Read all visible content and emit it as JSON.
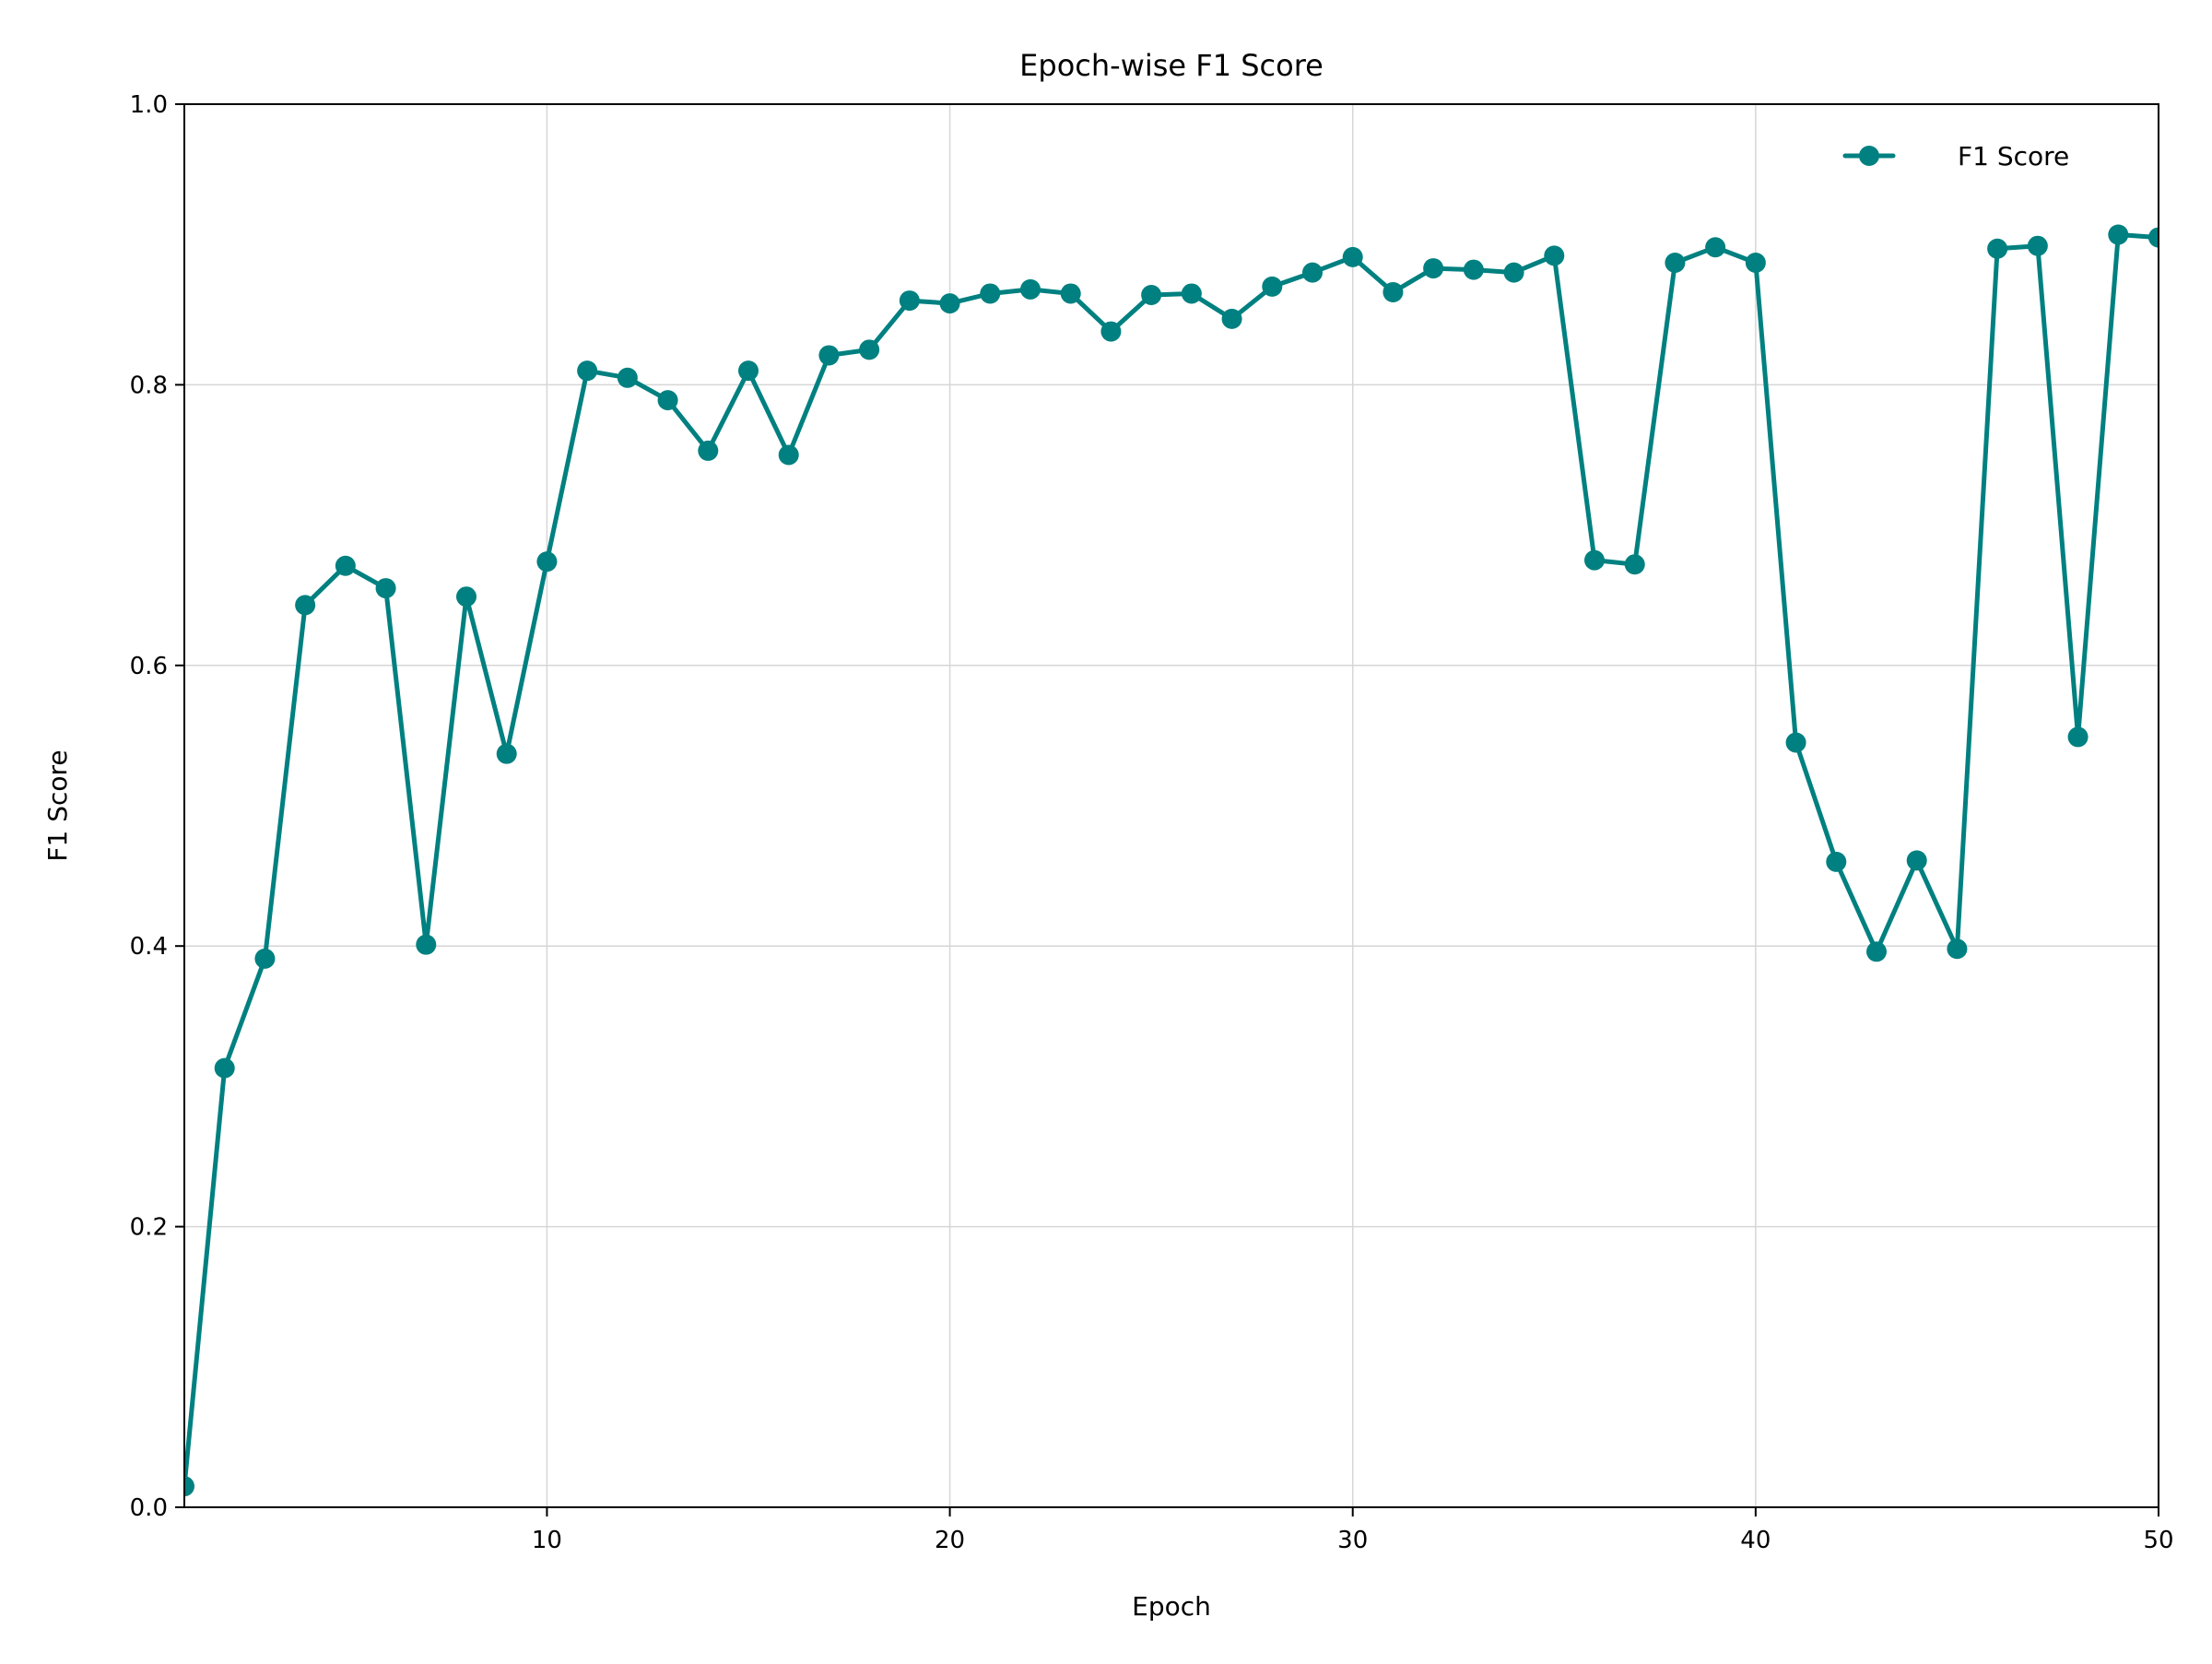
{
  "chart_data": {
    "type": "line",
    "title": "Epoch-wise F1 Score",
    "xlabel": "Epoch",
    "ylabel": "F1 Score",
    "xlim": [
      1,
      50
    ],
    "ylim": [
      0.0,
      1.0
    ],
    "xticks": [
      10,
      20,
      30,
      40,
      50
    ],
    "xtick_labels": [
      "10",
      "20",
      "30",
      "40",
      "50"
    ],
    "yticks": [
      0.0,
      0.2,
      0.4,
      0.6,
      0.8,
      1.0
    ],
    "ytick_labels": [
      "0.0",
      "0.2",
      "0.4",
      "0.6",
      "0.8",
      "1.0"
    ],
    "grid": true,
    "legend_position": "top-right",
    "color": "#008080",
    "series": [
      {
        "name": "F1 Score",
        "x": [
          1,
          2,
          3,
          4,
          5,
          6,
          7,
          8,
          9,
          10,
          11,
          12,
          13,
          14,
          15,
          16,
          17,
          18,
          19,
          20,
          21,
          22,
          23,
          24,
          25,
          26,
          27,
          28,
          29,
          30,
          31,
          32,
          33,
          34,
          35,
          36,
          37,
          38,
          39,
          40,
          41,
          42,
          43,
          44,
          45,
          46,
          47,
          48,
          49,
          50
        ],
        "y": [
          0.015,
          0.313,
          0.391,
          0.643,
          0.671,
          0.655,
          0.401,
          0.649,
          0.537,
          0.674,
          0.81,
          0.805,
          0.789,
          0.753,
          0.81,
          0.75,
          0.821,
          0.825,
          0.86,
          0.858,
          0.865,
          0.868,
          0.865,
          0.838,
          0.864,
          0.865,
          0.847,
          0.87,
          0.88,
          0.891,
          0.866,
          0.883,
          0.882,
          0.88,
          0.892,
          0.675,
          0.672,
          0.887,
          0.898,
          0.887,
          0.545,
          0.46,
          0.396,
          0.461,
          0.398,
          0.897,
          0.899,
          0.549,
          0.907,
          0.905
        ]
      }
    ]
  }
}
